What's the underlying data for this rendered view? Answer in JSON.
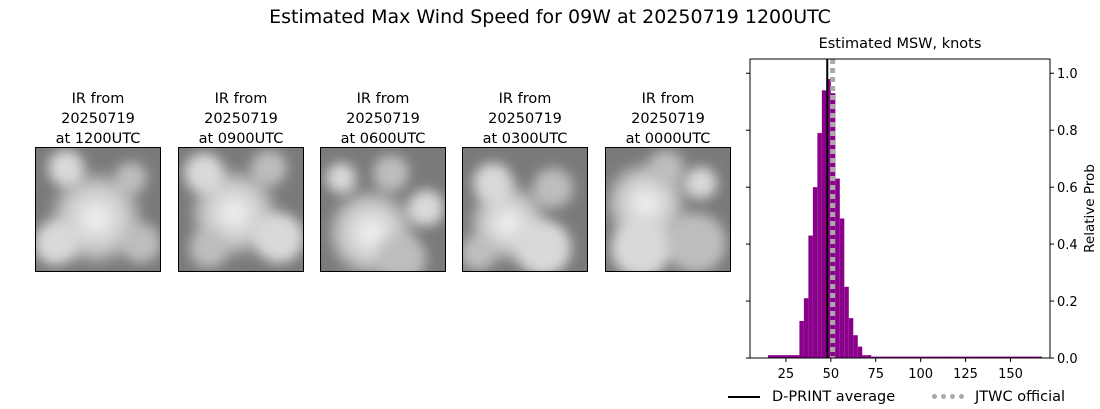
{
  "title": "Estimated Max Wind Speed for 09W at 20250719 1200UTC",
  "ir_panels": [
    {
      "line1": "IR from",
      "line2": "20250719",
      "line3": "at 1200UTC",
      "icon": "satellite-ir-image"
    },
    {
      "line1": "IR from",
      "line2": "20250719",
      "line3": "at 0900UTC",
      "icon": "satellite-ir-image"
    },
    {
      "line1": "IR from",
      "line2": "20250719",
      "line3": "at 0600UTC",
      "icon": "satellite-ir-image"
    },
    {
      "line1": "IR from",
      "line2": "20250719",
      "line3": "at 0300UTC",
      "icon": "satellite-ir-image"
    },
    {
      "line1": "IR from",
      "line2": "20250719",
      "line3": "at 0000UTC",
      "icon": "satellite-ir-image"
    }
  ],
  "chart_data": {
    "type": "bar",
    "title": "Estimated MSW, knots",
    "xlabel": "",
    "ylabel": "Relative Prob",
    "xlim": [
      5,
      172
    ],
    "ylim": [
      0,
      1.05
    ],
    "xticks": [
      "25",
      "50",
      "75",
      "100",
      "125",
      "150"
    ],
    "yticks": [
      "0.0",
      "0.2",
      "0.4",
      "0.6",
      "0.8",
      "1.0"
    ],
    "y_axis_side": "right",
    "bar_color": "#8b008b",
    "bin_width": 2.5,
    "bins": [
      15,
      17.5,
      20,
      22.5,
      25,
      27.5,
      30,
      32.5,
      35,
      37.5,
      40,
      42.5,
      45,
      47.5,
      50,
      52.5,
      55,
      57.5,
      60,
      62.5,
      65,
      67.5,
      70,
      72.5,
      75,
      77.5,
      80,
      82.5,
      85,
      87.5,
      90,
      92.5,
      95,
      97.5,
      100,
      102.5,
      105,
      107.5,
      110,
      112.5,
      115,
      117.5,
      120,
      122.5,
      125,
      127.5,
      130,
      132.5,
      135,
      137.5,
      140,
      142.5,
      145,
      147.5,
      150,
      152.5,
      155,
      157.5,
      160,
      162.5,
      165
    ],
    "values": [
      0.01,
      0.01,
      0.01,
      0.01,
      0.01,
      0.01,
      0.01,
      0.13,
      0.21,
      0.43,
      0.6,
      0.79,
      0.94,
      0.98,
      0.93,
      0.63,
      0.49,
      0.25,
      0.14,
      0.08,
      0.04,
      0.01,
      0.01,
      0.005,
      0.005,
      0.005,
      0.005,
      0.005,
      0.005,
      0.005,
      0.005,
      0.005,
      0.005,
      0.005,
      0.005,
      0.005,
      0.005,
      0.005,
      0.005,
      0.005,
      0.005,
      0.005,
      0.005,
      0.005,
      0.005,
      0.005,
      0.005,
      0.005,
      0.005,
      0.005,
      0.005,
      0.005,
      0.005,
      0.005,
      0.005,
      0.005,
      0.005,
      0.005,
      0.005,
      0.005,
      0.005
    ],
    "lines": [
      {
        "name": "D-PRINT average",
        "x": 48,
        "color": "#000000",
        "style": "solid"
      },
      {
        "name": "JTWC official",
        "x": 51,
        "color": "#aaaaaa",
        "style": "dotted"
      }
    ],
    "legend_position": "bottom",
    "grid": false
  }
}
